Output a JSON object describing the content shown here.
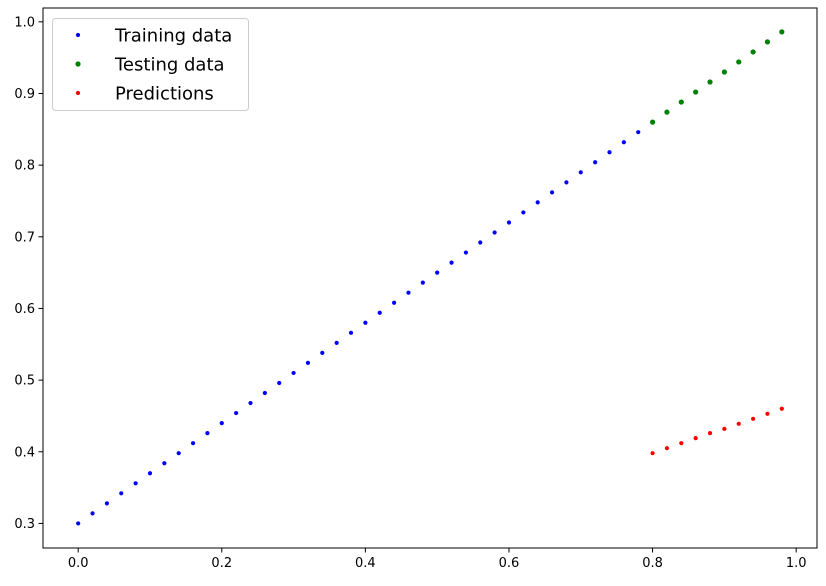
{
  "chart_data": {
    "type": "scatter",
    "title": "",
    "xlabel": "",
    "ylabel": "",
    "xlim": [
      -0.049,
      1.029
    ],
    "ylim": [
      0.2657,
      1.0193
    ],
    "grid": false,
    "legend_position": "top-left",
    "x_ticks": [
      {
        "value": 0.0,
        "label": "0.0"
      },
      {
        "value": 0.2,
        "label": "0.2"
      },
      {
        "value": 0.4,
        "label": "0.4"
      },
      {
        "value": 0.6,
        "label": "0.6"
      },
      {
        "value": 0.8,
        "label": "0.8"
      },
      {
        "value": 1.0,
        "label": "1.0"
      }
    ],
    "y_ticks": [
      {
        "value": 0.3,
        "label": "0.3"
      },
      {
        "value": 0.4,
        "label": "0.4"
      },
      {
        "value": 0.5,
        "label": "0.5"
      },
      {
        "value": 0.6,
        "label": "0.6"
      },
      {
        "value": 0.7,
        "label": "0.7"
      },
      {
        "value": 0.8,
        "label": "0.8"
      },
      {
        "value": 0.9,
        "label": "0.9"
      },
      {
        "value": 1.0,
        "label": "1.0"
      }
    ],
    "series": [
      {
        "name": "Training data",
        "color": "#0000ff",
        "x": [
          0.0,
          0.02,
          0.04,
          0.06,
          0.08,
          0.1,
          0.12,
          0.14,
          0.16,
          0.18,
          0.2,
          0.22,
          0.24,
          0.26,
          0.28,
          0.3,
          0.32,
          0.34,
          0.36,
          0.38,
          0.4,
          0.42,
          0.44,
          0.46,
          0.48,
          0.5,
          0.52,
          0.54,
          0.56,
          0.58,
          0.6,
          0.62,
          0.64,
          0.66,
          0.68,
          0.7,
          0.72,
          0.74,
          0.76,
          0.78
        ],
        "y": [
          0.3,
          0.314,
          0.328,
          0.342,
          0.356,
          0.37,
          0.384,
          0.398,
          0.412,
          0.426,
          0.44,
          0.454,
          0.468,
          0.482,
          0.496,
          0.51,
          0.524,
          0.538,
          0.552,
          0.566,
          0.58,
          0.594,
          0.608,
          0.622,
          0.636,
          0.65,
          0.664,
          0.678,
          0.692,
          0.706,
          0.72,
          0.734,
          0.748,
          0.762,
          0.776,
          0.79,
          0.804,
          0.818,
          0.832,
          0.846
        ]
      },
      {
        "name": "Testing data",
        "color": "#008000",
        "x": [
          0.8,
          0.82,
          0.84,
          0.86,
          0.88,
          0.9,
          0.92,
          0.94,
          0.96,
          0.98
        ],
        "y": [
          0.86,
          0.874,
          0.888,
          0.902,
          0.916,
          0.93,
          0.944,
          0.958,
          0.972,
          0.986
        ]
      },
      {
        "name": "Predictions",
        "color": "#ff0000",
        "x": [
          0.8,
          0.82,
          0.84,
          0.86,
          0.88,
          0.9,
          0.92,
          0.94,
          0.96,
          0.98
        ],
        "y": [
          0.398,
          0.405,
          0.412,
          0.419,
          0.426,
          0.432,
          0.439,
          0.446,
          0.453,
          0.46
        ]
      }
    ]
  }
}
